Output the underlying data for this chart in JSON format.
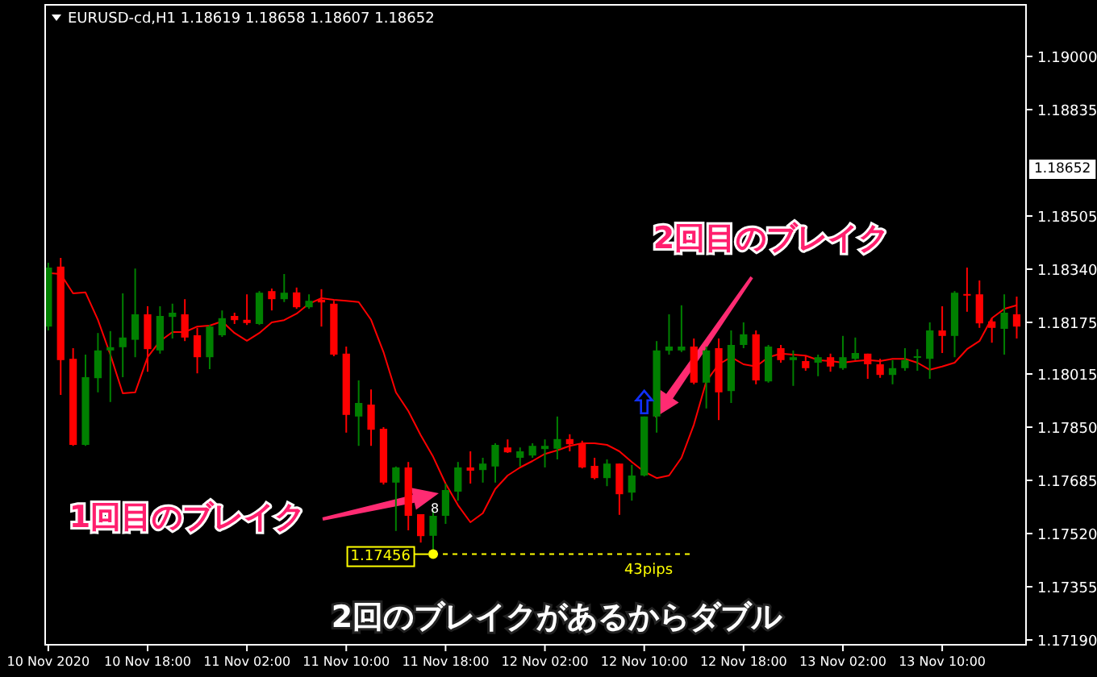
{
  "chart_data": {
    "type": "candlestick",
    "title": "EURUSD-cd,H1 1.18619 1.18658 1.18607 1.18652",
    "categories": [
      "10 Nov 2020",
      null,
      null,
      null,
      null,
      null,
      null,
      null,
      "10 Nov 18:00",
      null,
      null,
      null,
      null,
      null,
      null,
      null,
      "11 Nov 02:00",
      null,
      null,
      null,
      null,
      null,
      null,
      null,
      "11 Nov 10:00",
      null,
      null,
      null,
      null,
      null,
      null,
      null,
      "11 Nov 18:00",
      null,
      null,
      null,
      null,
      null,
      null,
      null,
      "12 Nov 02:00",
      null,
      null,
      null,
      null,
      null,
      null,
      null,
      "12 Nov 10:00",
      null,
      null,
      null,
      null,
      null,
      null,
      null,
      "12 Nov 18:00",
      null,
      null,
      null,
      null,
      null,
      null,
      null,
      "13 Nov 02:00",
      null,
      null,
      null,
      null,
      null,
      null,
      null,
      "13 Nov 10:00",
      null,
      null,
      null,
      null,
      null,
      null
    ],
    "ohlc": [
      [
        1.18162,
        1.1836,
        1.1815,
        1.18345
      ],
      [
        1.18348,
        1.18375,
        1.1795,
        1.18058
      ],
      [
        1.18062,
        1.18095,
        1.17792,
        1.17795
      ],
      [
        1.17795,
        1.18075,
        1.17792,
        1.18005
      ],
      [
        1.18002,
        1.18142,
        1.17958,
        1.18088
      ],
      [
        1.18088,
        1.18148,
        1.17928,
        1.18098
      ],
      [
        1.18098,
        1.18265,
        1.18005,
        1.18128
      ],
      [
        1.18121,
        1.18342,
        1.18067,
        1.182
      ],
      [
        1.182,
        1.18225,
        1.18022,
        1.18092
      ],
      [
        1.18088,
        1.18225,
        1.18078,
        1.18195
      ],
      [
        1.18192,
        1.18233,
        1.18125,
        1.18205
      ],
      [
        1.182,
        1.18247,
        1.18117,
        1.18128
      ],
      [
        1.18135,
        1.18158,
        1.18017,
        1.18067
      ],
      [
        1.18067,
        1.18167,
        1.1803,
        1.18162
      ],
      [
        1.18135,
        1.18212,
        1.1813,
        1.18188
      ],
      [
        1.18195,
        1.18205,
        1.1817,
        1.18182
      ],
      [
        1.18183,
        1.18262,
        1.18167,
        1.18173
      ],
      [
        1.1817,
        1.18272,
        1.18167,
        1.18267
      ],
      [
        1.18272,
        1.1828,
        1.18212,
        1.18247
      ],
      [
        1.18247,
        1.18325,
        1.18238,
        1.18267
      ],
      [
        1.18268,
        1.18283,
        1.18217,
        1.18222
      ],
      [
        1.18222,
        1.18262,
        1.18217,
        1.18242
      ],
      [
        1.18245,
        1.18278,
        1.18162,
        1.18237
      ],
      [
        1.18233,
        1.18242,
        1.1807,
        1.18075
      ],
      [
        1.18078,
        1.181,
        1.17833,
        1.17888
      ],
      [
        1.17883,
        1.17995,
        1.17792,
        1.17925
      ],
      [
        1.1792,
        1.17967,
        1.17792,
        1.17842
      ],
      [
        1.17845,
        1.1785,
        1.17672,
        1.17678
      ],
      [
        1.17678,
        1.17728,
        1.17528,
        1.17725
      ],
      [
        1.17725,
        1.17742,
        1.1753,
        1.17575
      ],
      [
        1.1758,
        1.1758,
        1.17492,
        1.17512
      ],
      [
        1.17513,
        1.17592,
        1.17456,
        1.17575
      ],
      [
        1.17575,
        1.17675,
        1.1755,
        1.17655
      ],
      [
        1.1765,
        1.17742,
        1.17622,
        1.17725
      ],
      [
        1.17725,
        1.17775,
        1.17675,
        1.17715
      ],
      [
        1.17717,
        1.17755,
        1.17678,
        1.17737
      ],
      [
        1.17728,
        1.178,
        1.17678,
        1.17795
      ],
      [
        1.17787,
        1.17812,
        1.1777,
        1.17772
      ],
      [
        1.17755,
        1.17787,
        1.17728,
        1.17775
      ],
      [
        1.17762,
        1.178,
        1.17755,
        1.17792
      ],
      [
        1.17782,
        1.17812,
        1.17725,
        1.17792
      ],
      [
        1.17783,
        1.17883,
        1.1775,
        1.17813
      ],
      [
        1.17813,
        1.17828,
        1.17775,
        1.17797
      ],
      [
        1.178,
        1.17808,
        1.17722,
        1.17725
      ],
      [
        1.1773,
        1.17755,
        1.17688,
        1.17692
      ],
      [
        1.17692,
        1.1775,
        1.17667,
        1.17737
      ],
      [
        1.17737,
        1.17737,
        1.17578,
        1.17642
      ],
      [
        1.17647,
        1.17733,
        1.17622,
        1.177
      ],
      [
        1.177,
        1.17883,
        1.17697,
        1.17883
      ],
      [
        1.17883,
        1.18117,
        1.17833,
        1.18088
      ],
      [
        1.18087,
        1.182,
        1.18075,
        1.181
      ],
      [
        1.18088,
        1.18228,
        1.18083,
        1.181
      ],
      [
        1.181,
        1.18125,
        1.17983,
        1.17988
      ],
      [
        1.17988,
        1.181,
        1.17908,
        1.18088
      ],
      [
        1.18095,
        1.18125,
        1.17872,
        1.17958
      ],
      [
        1.17962,
        1.1815,
        1.17925,
        1.18105
      ],
      [
        1.18105,
        1.18175,
        1.18095,
        1.18138
      ],
      [
        1.18138,
        1.1815,
        1.17983,
        1.17995
      ],
      [
        1.17992,
        1.18105,
        1.17988,
        1.181
      ],
      [
        1.18095,
        1.18105,
        1.1805,
        1.18058
      ],
      [
        1.18058,
        1.18088,
        1.17978,
        1.18067
      ],
      [
        1.18055,
        1.18072,
        1.18025,
        1.18033
      ],
      [
        1.1805,
        1.18075,
        1.18008,
        1.18067
      ],
      [
        1.18067,
        1.18078,
        1.18022,
        1.18038
      ],
      [
        1.18033,
        1.18133,
        1.18028,
        1.18067
      ],
      [
        1.18062,
        1.18128,
        1.18058,
        1.1808
      ],
      [
        1.18078,
        1.18078,
        1.18,
        1.18045
      ],
      [
        1.18045,
        1.18062,
        1.18003,
        1.18012
      ],
      [
        1.18012,
        1.18058,
        1.17983,
        1.18033
      ],
      [
        1.18033,
        1.18095,
        1.18025,
        1.18058
      ],
      [
        1.18065,
        1.18092,
        1.18025,
        1.1807
      ],
      [
        1.18062,
        1.18175,
        1.18,
        1.1815
      ],
      [
        1.1815,
        1.18225,
        1.1808,
        1.18133
      ],
      [
        1.18133,
        1.18272,
        1.18067,
        1.18267
      ],
      [
        1.18263,
        1.18345,
        1.18208,
        1.18258
      ],
      [
        1.18262,
        1.18305,
        1.18158,
        1.18172
      ],
      [
        1.18178,
        1.18188,
        1.18112,
        1.18158
      ],
      [
        1.18155,
        1.18262,
        1.18075,
        1.18205
      ],
      [
        1.182,
        1.18255,
        1.18125,
        1.18162
      ]
    ],
    "colors": [
      "#008000",
      "#ff0000",
      "#ff0000",
      "#008000",
      "#008000",
      "#008000",
      "#008000",
      "#008000",
      "#ff0000",
      "#008000",
      "#008000",
      "#ff0000",
      "#ff0000",
      "#008000",
      "#008000",
      "#ff0000",
      "#ff0000",
      "#008000",
      "#ff0000",
      "#008000",
      "#ff0000",
      "#008000",
      "#ff0000",
      "#ff0000",
      "#ff0000",
      "#008000",
      "#ff0000",
      "#ff0000",
      "#008000",
      "#ff0000",
      "#ff0000",
      "#008000",
      "#008000",
      "#008000",
      "#ff0000",
      "#008000",
      "#008000",
      "#ff0000",
      "#008000",
      "#008000",
      "#008000",
      "#008000",
      "#ff0000",
      "#ff0000",
      "#ff0000",
      "#008000",
      "#ff0000",
      "#008000",
      "#008000",
      "#008000",
      "#008000",
      "#008000",
      "#ff0000",
      "#008000",
      "#ff0000",
      "#008000",
      "#008000",
      "#ff0000",
      "#008000",
      "#ff0000",
      "#008000",
      "#ff0000",
      "#008000",
      "#ff0000",
      "#008000",
      "#008000",
      "#ff0000",
      "#ff0000",
      "#008000",
      "#008000",
      "#008000",
      "#008000",
      "#ff0000",
      "#008000",
      "#ff0000",
      "#ff0000",
      "#ff0000",
      "#008000",
      "#ff0000"
    ],
    "series": [
      {
        "type": "line",
        "color": "#ff0000",
        "values": [
          1.18328,
          1.18325,
          1.18265,
          1.18268,
          1.18183,
          1.18075,
          1.17955,
          1.17958,
          1.18067,
          1.18117,
          1.18145,
          1.18145,
          1.18162,
          1.18165,
          1.18178,
          1.18142,
          1.18118,
          1.18142,
          1.18175,
          1.18182,
          1.18202,
          1.18233,
          1.1825,
          1.18245,
          1.18242,
          1.18238,
          1.18183,
          1.18083,
          1.17958,
          1.179,
          1.17825,
          1.17758,
          1.17675,
          1.17608,
          1.17555,
          1.17583,
          1.17658,
          1.177,
          1.17725,
          1.17745,
          1.17767,
          1.17778,
          1.17792,
          1.178,
          1.178,
          1.17795,
          1.17775,
          1.17742,
          1.17712,
          1.17692,
          1.177,
          1.17755,
          1.17858,
          1.17992,
          1.18045,
          1.18067,
          1.18045,
          1.18038,
          1.18067,
          1.18078,
          1.18075,
          1.18072,
          1.18058,
          1.18055,
          1.1805,
          1.18055,
          1.18058,
          1.18055,
          1.18062,
          1.18062,
          1.1805,
          1.18028,
          1.18038,
          1.1805,
          1.18092,
          1.18117,
          1.18188,
          1.18217,
          1.18228
        ]
      },
      {
        "type": "line",
        "color": "#ffff00",
        "line_style": "dashed",
        "values": [
          null,
          null,
          null,
          null,
          null,
          null,
          null,
          null,
          null,
          null,
          null,
          null,
          null,
          null,
          null,
          null,
          null,
          null,
          null,
          null,
          null,
          null,
          null,
          null,
          null,
          null,
          null,
          null,
          null,
          null,
          null,
          1.17456,
          1.17456,
          1.17456,
          1.17456,
          1.17456,
          1.17456,
          1.17456,
          1.17456,
          1.17456,
          1.17456,
          1.17456,
          1.17456,
          1.17456,
          1.17456,
          1.17456,
          1.17456,
          1.17456,
          1.17456,
          1.17456,
          1.17456,
          1.17456,
          1.17456,
          null,
          null,
          null,
          null,
          null,
          null,
          null,
          null,
          null,
          null,
          null,
          null,
          null,
          null,
          null,
          null,
          null,
          null,
          null,
          null,
          null,
          null,
          null,
          null,
          null,
          null
        ]
      },
      {
        "type": "scatter",
        "color": "#ffff00",
        "marker": "circle",
        "values": [
          null,
          null,
          null,
          null,
          null,
          null,
          null,
          null,
          null,
          null,
          null,
          null,
          null,
          null,
          null,
          null,
          null,
          null,
          null,
          null,
          null,
          null,
          null,
          null,
          null,
          null,
          null,
          null,
          null,
          null,
          null,
          1.17456,
          null,
          null,
          null,
          null,
          null,
          null,
          null,
          null,
          null,
          null,
          null,
          null,
          null,
          null,
          null,
          null,
          null,
          null,
          null,
          null,
          null,
          null,
          null,
          null,
          null,
          null,
          null,
          null,
          null,
          null,
          null,
          null,
          null,
          null,
          null,
          null,
          null,
          null,
          null,
          null,
          null,
          null,
          null,
          null,
          null,
          null,
          null
        ]
      }
    ],
    "annotations": [
      "2回目のブレイク",
      "1回目のブレイク",
      "2回のブレイクがあるからダブル",
      "1.17456",
      "43pips",
      "8",
      "1.18652"
    ],
    "ylim": [
      1.17175,
      1.1916
    ],
    "yticks": [
      {
        "value": 1.19,
        "label": "1.19000"
      },
      {
        "value": 1.18835,
        "label": "1.18835"
      },
      {
        "value": 1.18505,
        "label": "1.18505"
      },
      {
        "value": 1.1834,
        "label": "1.18340"
      },
      {
        "value": 1.18175,
        "label": "1.18175"
      },
      {
        "value": 1.18015,
        "label": "1.18015"
      },
      {
        "value": 1.1785,
        "label": "1.17850"
      },
      {
        "value": 1.17685,
        "label": "1.17685"
      },
      {
        "value": 1.1752,
        "label": "1.17520"
      },
      {
        "value": 1.17355,
        "label": "1.17355"
      },
      {
        "value": 1.1719,
        "label": "1.17190"
      }
    ]
  }
}
